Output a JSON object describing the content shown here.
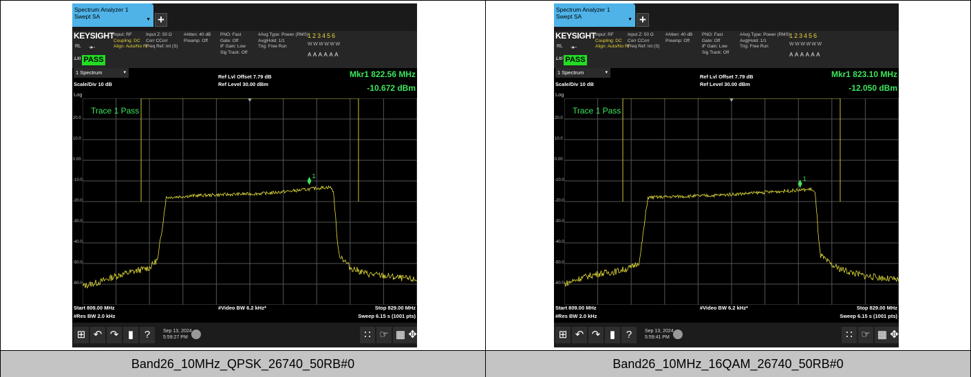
{
  "panels": [
    {
      "tab": {
        "title_line1": "Spectrum Analyzer 1",
        "title_line2": "Swept SA"
      },
      "info": {
        "brand": "KEYSIGHT",
        "rl": "RL",
        "input": "Input: RF",
        "coupling": "Coupling: DC",
        "align": "Align: Auto/No RF",
        "input_z": "Input Z: 50 Ω",
        "corr": "Corr CCorr",
        "freq_ref": "Freq Ref: Int (S)",
        "atten": "#Atten: 40 dB",
        "preamp": "Preamp: Off",
        "pno": "PNO: Fast",
        "gate": "Gate: Off",
        "if_gain": "IF Gain: Low",
        "sig_track": "Sig Track: Off",
        "avg_type": "#Avg Type: Power (RMS)",
        "avg_hold": "Avg|Hold: 1/1",
        "trig": "Trig: Free Run",
        "trace_nums": "123456",
        "trace_w": "WWWWWW",
        "trace_a": "AAAAAA",
        "lxi": "LXI",
        "pass": "PASS"
      },
      "header": {
        "spectrum": "1 Spectrum",
        "scale_div": "Scale/Div 10 dB",
        "ref_offset": "Ref Lvl Offset 7.79 dB",
        "ref_level": "Ref Level 30.00 dBm",
        "mkr_freq": "Mkr1  822.56 MHz",
        "mkr_amp": "-10.672 dBm"
      },
      "log": "Log",
      "trace_label": "Trace 1 Pass",
      "footer": {
        "start": "Start 809.00 MHz",
        "rbw": "#Res BW 2.0 kHz",
        "vbw": "#Video BW 6.2 kHz*",
        "stop": "Stop 829.00 MHz",
        "sweep": "Sweep 6.15 s (1001 pts)"
      },
      "taskbar": {
        "date": "Sep 13, 2024",
        "time": "5:59:27 PM"
      },
      "caption": "Band26_10MHz_QPSK_26740_50RB#0"
    },
    {
      "tab": {
        "title_line1": "Spectrum Analyzer 1",
        "title_line2": "Swept SA"
      },
      "info": {
        "brand": "KEYSIGHT",
        "rl": "RL",
        "input": "Input: RF",
        "coupling": "Coupling: DC",
        "align": "Align: Auto/No RF",
        "input_z": "Input Z: 50 Ω",
        "corr": "Corr CCorr",
        "freq_ref": "Freq Ref: Int (S)",
        "atten": "#Atten: 40 dB",
        "preamp": "Preamp: Off",
        "pno": "PNO: Fast",
        "gate": "Gate: Off",
        "if_gain": "IF Gain: Low",
        "sig_track": "Sig Track: Off",
        "avg_type": "#Avg Type: Power (RMS)",
        "avg_hold": "Avg|Hold: 1/1",
        "trig": "Trig: Free Run",
        "trace_nums": "123456",
        "trace_w": "WWWWWW",
        "trace_a": "AAAAAA",
        "lxi": "LXI",
        "pass": "PASS"
      },
      "header": {
        "spectrum": "1 Spectrum",
        "scale_div": "Scale/Div 10 dB",
        "ref_offset": "Ref Lvl Offset 7.79 dB",
        "ref_level": "Ref Level 30.00 dBm",
        "mkr_freq": "Mkr1  823.10 MHz",
        "mkr_amp": "-12.050 dBm"
      },
      "log": "Log",
      "trace_label": "Trace 1 Pass",
      "footer": {
        "start": "Start 809.00 MHz",
        "rbw": "#Res BW 2.0 kHz",
        "vbw": "#Video BW 6.2 kHz*",
        "stop": "Stop 829.00 MHz",
        "sweep": "Sweep 6.15 s (1001 pts)"
      },
      "taskbar": {
        "date": "Sep 13, 2024",
        "time": "5:59:41 PM"
      },
      "caption": "Band26_10MHz_16QAM_26740_50RB#0"
    }
  ],
  "y_ticks": [
    "20.0",
    "10.0",
    "0.00",
    "-10.0",
    "-20.0",
    "-30.0",
    "-40.0",
    "-50.0",
    "-60.0"
  ],
  "colors": {
    "trace": "#e8e23a",
    "limit": "#c9c43a",
    "marker": "#3ee65e",
    "pass": "#22dd22",
    "tab": "#4fb3e8"
  },
  "chart_data": [
    {
      "type": "line",
      "x_range_mhz": [
        809.0,
        829.0
      ],
      "ylim": [
        -70,
        30
      ],
      "marker": {
        "x": 822.56,
        "y": -10.672
      },
      "limit_line": {
        "inner": [
          813.0,
          825.0
        ],
        "outer": [
          812.5,
          825.5
        ],
        "top": 30,
        "bottom": -20
      },
      "series": [
        {
          "x": [
            809.0,
            810.0,
            811.0,
            812.0,
            813.0,
            813.5,
            814.0,
            816.0,
            818.0,
            820.0,
            822.0,
            823.0,
            823.8,
            824.0,
            824.3,
            825.0,
            826.0,
            827.0,
            828.0,
            829.0
          ],
          "y": [
            -61,
            -59,
            -56,
            -54,
            -52,
            -48,
            -18,
            -17,
            -16.5,
            -16,
            -14.5,
            -13.5,
            -13,
            -15,
            -45,
            -52,
            -55,
            -56,
            -57,
            -58
          ]
        }
      ]
    },
    {
      "type": "line",
      "x_range_mhz": [
        809.0,
        829.0
      ],
      "ylim": [
        -70,
        30
      ],
      "marker": {
        "x": 823.1,
        "y": -12.05
      },
      "limit_line": {
        "inner": [
          813.0,
          825.0
        ],
        "outer": [
          812.5,
          825.5
        ],
        "top": 30,
        "bottom": -20
      },
      "series": [
        {
          "x": [
            809.0,
            810.0,
            811.0,
            812.0,
            813.0,
            813.5,
            814.0,
            816.0,
            818.0,
            820.0,
            822.0,
            823.0,
            823.8,
            824.0,
            824.3,
            825.0,
            826.0,
            827.0,
            828.0,
            829.0
          ],
          "y": [
            -60,
            -57,
            -55,
            -54,
            -52,
            -49,
            -18,
            -17.5,
            -17,
            -16,
            -15,
            -14.5,
            -14,
            -16,
            -46,
            -51,
            -54,
            -56,
            -57,
            -58
          ]
        }
      ]
    }
  ]
}
